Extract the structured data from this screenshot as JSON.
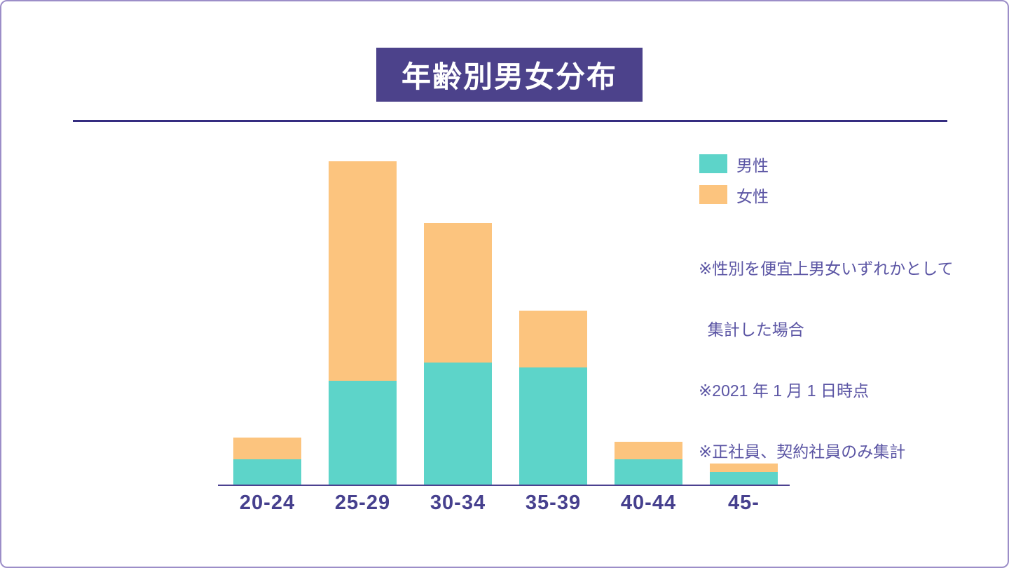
{
  "title": {
    "text": "年齢別男女分布"
  },
  "legend": {
    "items": [
      {
        "label": "男性",
        "color": "#5dd4c9"
      },
      {
        "label": "女性",
        "color": "#fcc47e"
      }
    ]
  },
  "notes": {
    "lines": [
      "※性別を便宜上男女いずれかとして",
      "  集計した場合",
      "※2021 年 1 月 1 日時点",
      "※正社員、契約社員のみ集計"
    ]
  },
  "chart_data": {
    "type": "bar",
    "stacked": true,
    "title": "年齢別男女分布",
    "categories": [
      "20-24",
      "25-29",
      "30-34",
      "35-39",
      "40-44",
      "45-"
    ],
    "series": [
      {
        "name": "男性",
        "color": "#5dd4c9",
        "values": [
          36,
          148,
          174,
          167,
          36,
          18
        ]
      },
      {
        "name": "女性",
        "color": "#fcc47e",
        "values": [
          31,
          313,
          199,
          81,
          25,
          12
        ]
      }
    ],
    "totals": [
      67,
      461,
      373,
      248,
      61,
      30
    ],
    "xlabel": "",
    "ylabel": "",
    "y_axis_visible": false,
    "gridlines": false,
    "value_unit": "people (no y-axis shown; values estimated from bar heights)",
    "legend_position": "right"
  },
  "colors": {
    "male": "#5dd4c9",
    "female": "#fcc47e",
    "title_bg": "#4c428b",
    "title_text": "#ffffff",
    "divider": "#352d80",
    "axis_line": "#4c4190",
    "tick_label": "#46408e",
    "note_text": "#5b55a4",
    "page_border": "#9c8ec8",
    "background": "#ffffff"
  }
}
